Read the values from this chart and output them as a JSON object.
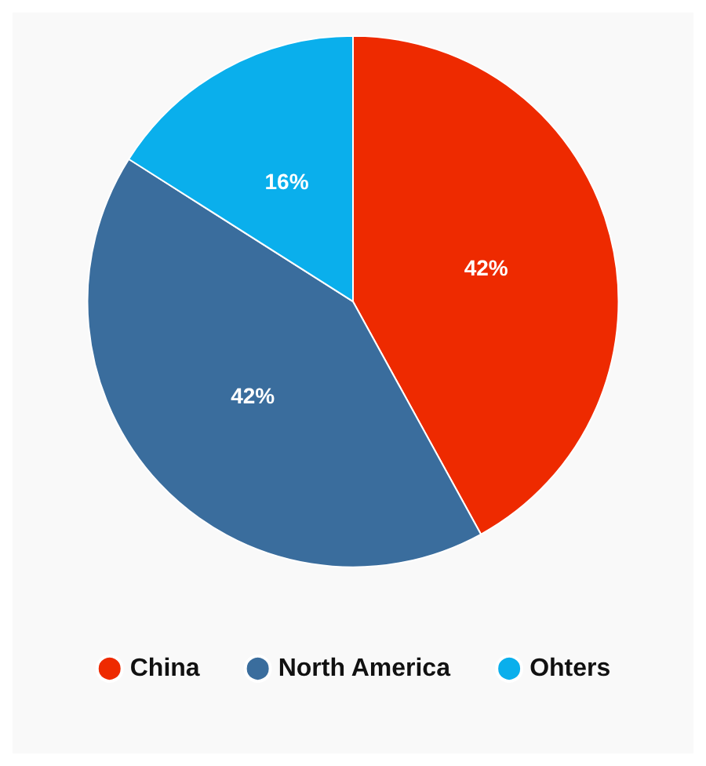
{
  "chart_data": {
    "type": "pie",
    "categories": [
      "China",
      "North America",
      "Ohters"
    ],
    "values": [
      42,
      42,
      16
    ],
    "colors": [
      "#ee2a00",
      "#3a6d9d",
      "#0aafec"
    ],
    "value_labels": [
      "42%",
      "42%",
      "16%"
    ],
    "legend": "bottom"
  }
}
